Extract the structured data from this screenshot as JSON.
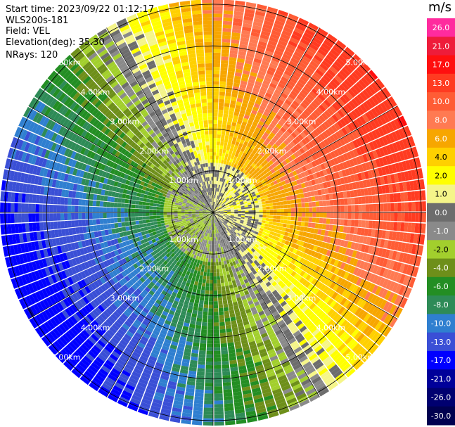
{
  "header": {
    "start_time": "Start time: 2023/09/22 01:12:17",
    "instrument": "WLS200s-181",
    "field": "Field: VEL",
    "elevation": "Elevation(deg): 35.30",
    "nrays": "NRays: 120"
  },
  "colorbar": {
    "unit": "m/s",
    "labels": [
      "26.0",
      "21.0",
      "17.0",
      "13.0",
      "10.0",
      "8.0",
      "6.0",
      "4.0",
      "2.0",
      "1.0",
      "0.0",
      "-1.0",
      "-2.0",
      "-4.0",
      "-6.0",
      "-8.0",
      "-10.0",
      "-13.0",
      "-17.0",
      "-21.0",
      "-26.0",
      "-30.0"
    ],
    "colors": [
      "#ff2b9e",
      "#ee1c3a",
      "#ff0f0f",
      "#ff3b21",
      "#ff5c35",
      "#ff7a52",
      "#f7a600",
      "#ffd000",
      "#ffff00",
      "#f5f589",
      "#6d6d6d",
      "#8a8a8a",
      "#a2cf2d",
      "#6e8f1a",
      "#238e23",
      "#2e8b57",
      "#2f7fd0",
      "#3a4fd6",
      "#0000ff",
      "#00009a",
      "#000070",
      "#000050"
    ]
  },
  "chart_data": {
    "type": "heatmap",
    "projection": "polar PPI (plan position indicator)",
    "field": "VEL",
    "units": "m/s",
    "nrays": 120,
    "range_km_max": 6.0,
    "range_rings_km": [
      1.0,
      2.0,
      3.0,
      4.0,
      5.0
    ],
    "range_ring_labels": [
      "1.00km",
      "2.00km",
      "3.00km",
      "4.00km",
      "5.00km"
    ],
    "value_range": [
      -30.0,
      26.0
    ],
    "approx_pattern": {
      "north_east": "positive velocities ~ +4 to +17 m/s, increasing with range",
      "south_west": "negative velocities ~ -4 to -13 m/s, decreasing with range",
      "near_center": "mixed +1 to -2 m/s with gray near-zero band"
    }
  }
}
